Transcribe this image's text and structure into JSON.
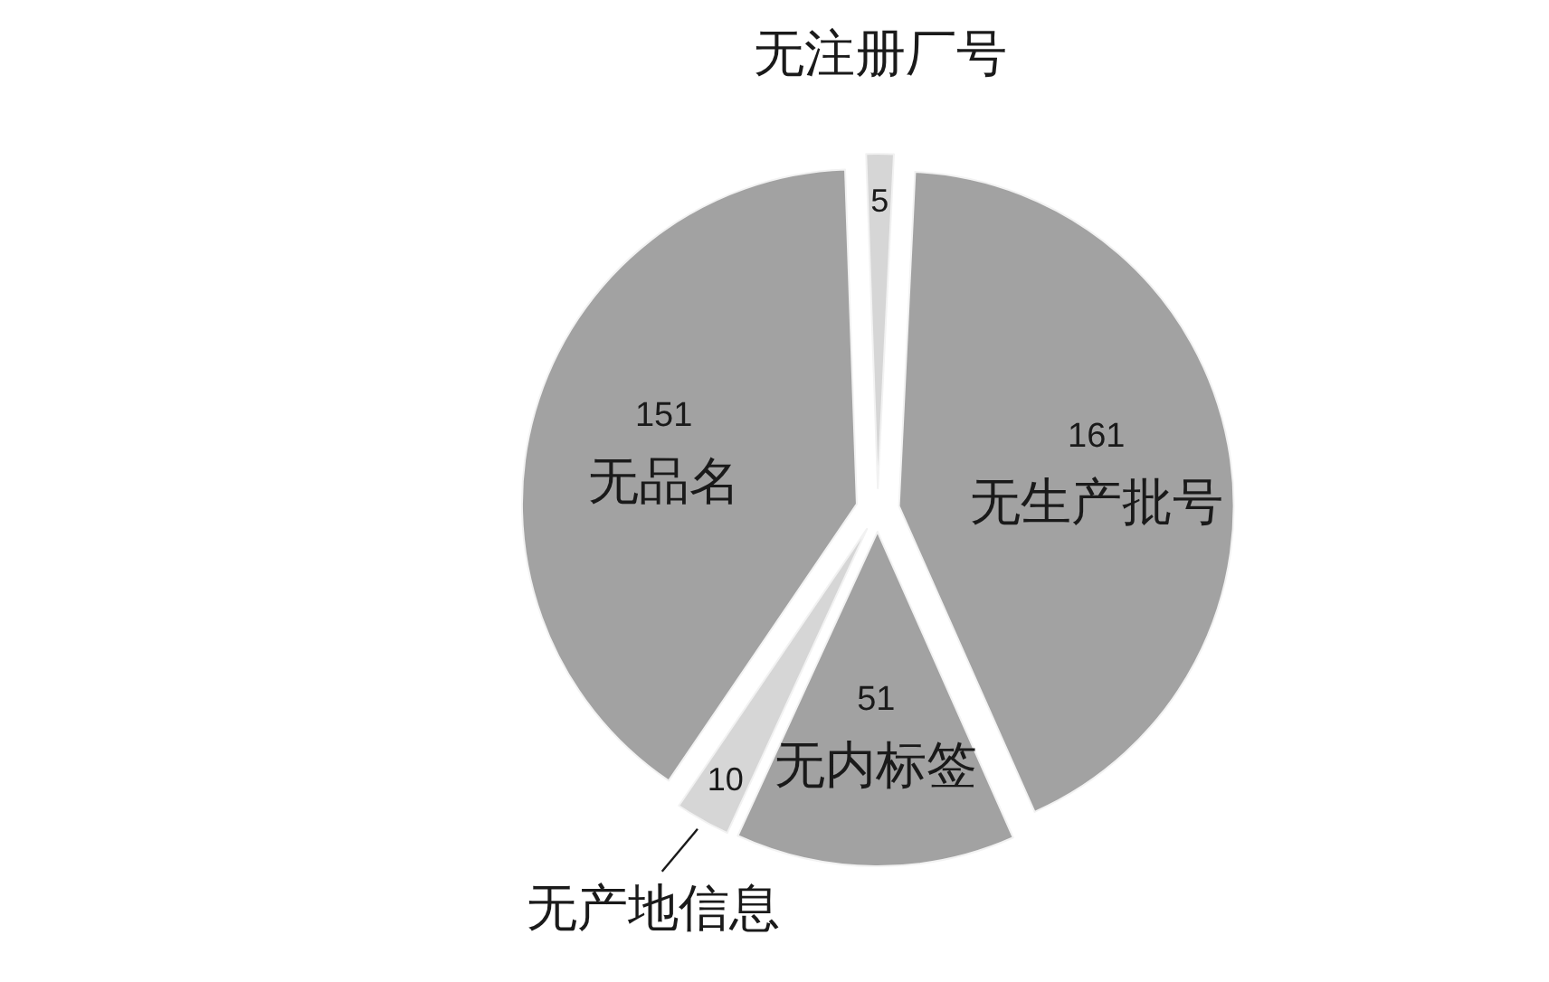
{
  "chart_data": {
    "type": "pie",
    "categories": [
      "无注册厂号",
      "无生产批号",
      "无内标签",
      "无产地信息",
      "无品名"
    ],
    "values": [
      5,
      161,
      51,
      10,
      151
    ],
    "colors": [
      "#d6d6d6",
      "#a2a2a2",
      "#a2a2a2",
      "#d6d6d6",
      "#a2a2a2"
    ],
    "data_labels": true
  }
}
